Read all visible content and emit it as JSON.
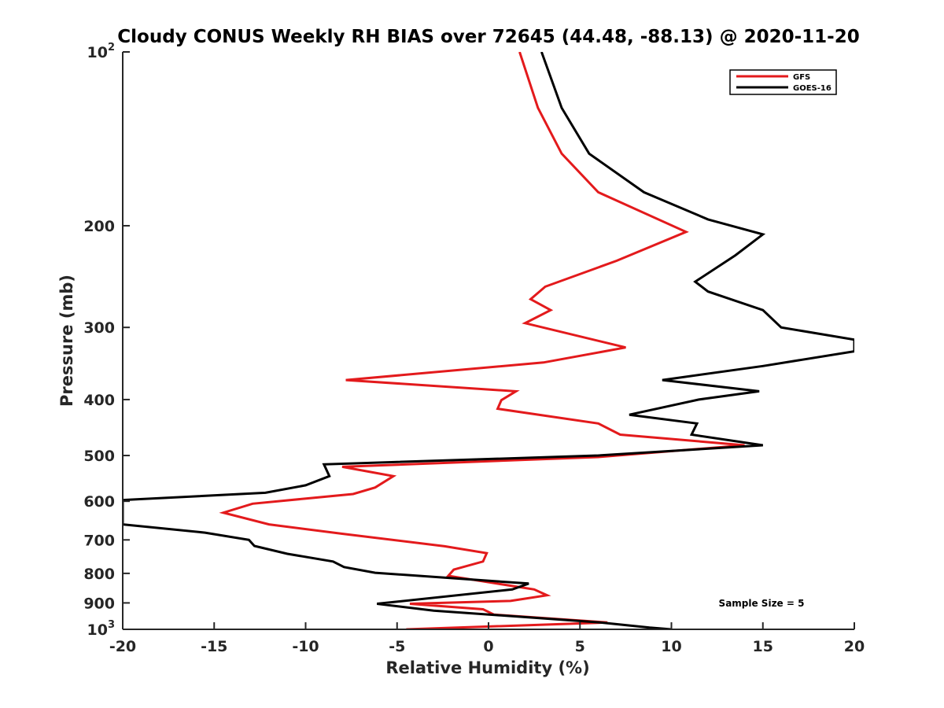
{
  "chart_data": {
    "type": "line",
    "title": "Cloudy CONUS Weekly RH BIAS over 72645 (44.48, -88.13) @ 2020-11-20",
    "xlabel": "Relative Humidity (%)",
    "ylabel": "Pressure (mb)",
    "xlim": [
      -20,
      20
    ],
    "ylim": [
      100,
      1000
    ],
    "yscale": "log",
    "y_reversed": true,
    "x_ticks": [
      "-20",
      "-15",
      "-10",
      "-5",
      "0",
      "5",
      "10",
      "15",
      "20"
    ],
    "y_ticks": [
      {
        "value": 100,
        "base": "10",
        "exp": "2"
      },
      {
        "value": 200,
        "label": "200"
      },
      {
        "value": 300,
        "label": "300"
      },
      {
        "value": 400,
        "label": "400"
      },
      {
        "value": 500,
        "label": "500"
      },
      {
        "value": 600,
        "label": "600"
      },
      {
        "value": 700,
        "label": "700"
      },
      {
        "value": 800,
        "label": "800"
      },
      {
        "value": 900,
        "label": "900"
      },
      {
        "value": 1000,
        "base": "10",
        "exp": "3"
      }
    ],
    "grid": false,
    "legend_position": "top-right",
    "annotation": "Sample Size = 5",
    "series": [
      {
        "name": "GFS",
        "color": "#e31a1c",
        "x": [
          1.7,
          2.7,
          4.0,
          6.0,
          10.8,
          7.0,
          3.1,
          2.3,
          3.4,
          2.0,
          7.5,
          3.0,
          -7.8,
          1.5,
          0.7,
          0.5,
          6.0,
          7.2,
          14.0,
          6.0,
          -8.0,
          -5.2,
          -6.2,
          -7.4,
          -12.9,
          -14.5,
          -12.0,
          -8.0,
          -2.4,
          -0.1,
          -0.3,
          -1.9,
          -2.2,
          2.5,
          3.2,
          1.2,
          -4.3,
          -0.3,
          0.3,
          6.5,
          -4.5
        ],
        "y": [
          100,
          125,
          150,
          175,
          205,
          230,
          255,
          268,
          280,
          295,
          325,
          345,
          370,
          387,
          401,
          415,
          440,
          460,
          480,
          503,
          523,
          543,
          568,
          583,
          606,
          628,
          658,
          683,
          718,
          738,
          763,
          788,
          808,
          853,
          873,
          893,
          903,
          923,
          943,
          973,
          1000
        ]
      },
      {
        "name": "GOES-16",
        "color": "#000000",
        "x": [
          2.9,
          4.0,
          5.5,
          8.5,
          12.0,
          15.0,
          13.5,
          11.3,
          12.0,
          15.0,
          16.0,
          20.0,
          20.0,
          15.0,
          9.5,
          14.8,
          11.5,
          7.7,
          11.4,
          11.1,
          15.0,
          6.0,
          -9.0,
          -8.7,
          -10.0,
          -12.2,
          -20.0,
          -20.0,
          -15.5,
          -13.1,
          -12.8,
          -11.0,
          -8.5,
          -7.9,
          -6.2,
          2.2,
          1.3,
          -6.1,
          -3.0,
          6.1,
          8.8,
          10.0
        ],
        "y": [
          100,
          125,
          150,
          175,
          195,
          207,
          225,
          250,
          260,
          280,
          300,
          315,
          330,
          350,
          370,
          387,
          400,
          425,
          440,
          460,
          480,
          500,
          518,
          543,
          563,
          580,
          597,
          658,
          680,
          700,
          717,
          740,
          763,
          780,
          798,
          833,
          853,
          903,
          928,
          973,
          993,
          1000
        ]
      }
    ]
  }
}
